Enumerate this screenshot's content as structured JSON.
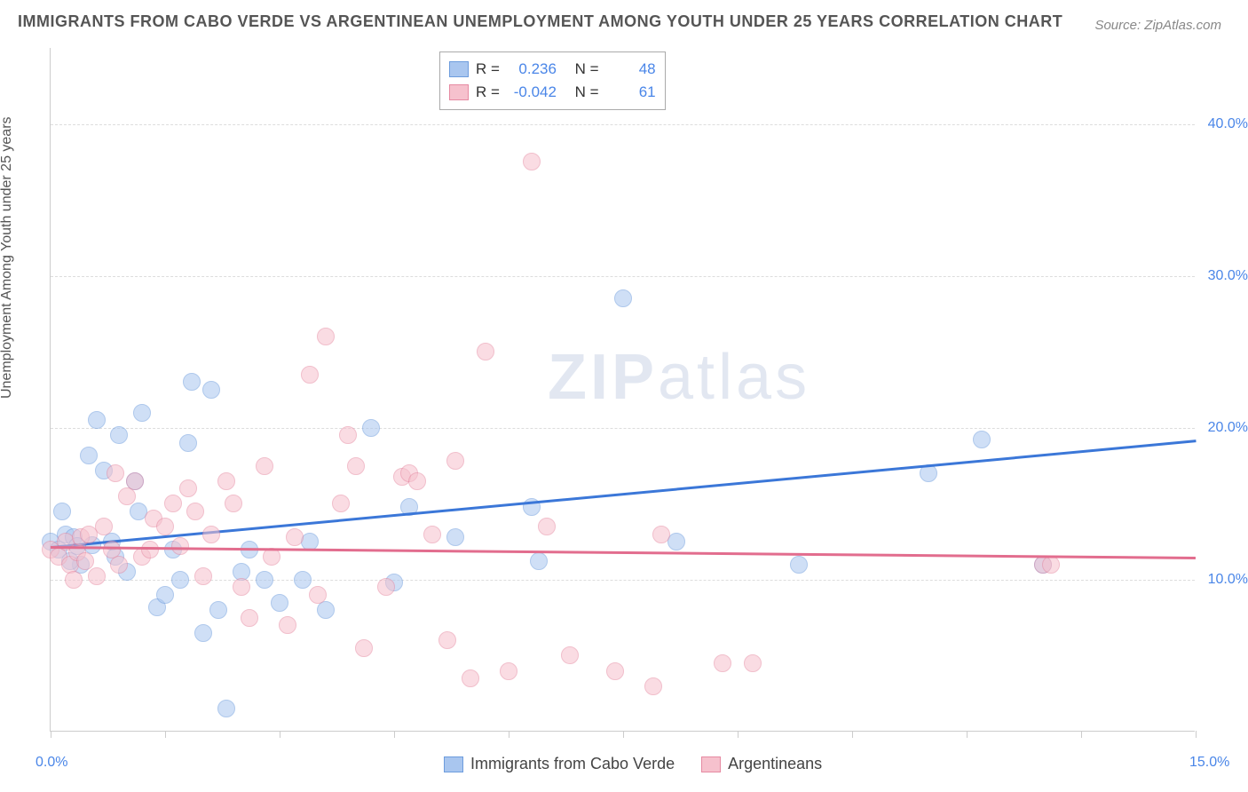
{
  "title": "IMMIGRANTS FROM CABO VERDE VS ARGENTINEAN UNEMPLOYMENT AMONG YOUTH UNDER 25 YEARS CORRELATION CHART",
  "source": "Source: ZipAtlas.com",
  "ylabel": "Unemployment Among Youth under 25 years",
  "watermark_a": "ZIP",
  "watermark_b": "atlas",
  "chart": {
    "type": "scatter",
    "background_color": "#ffffff",
    "grid_color": "#dddddd",
    "axis_color": "#cccccc",
    "xlim": [
      0,
      15
    ],
    "ylim": [
      0,
      45
    ],
    "ytick_values": [
      10,
      20,
      30,
      40
    ],
    "ytick_labels": [
      "10.0%",
      "20.0%",
      "30.0%",
      "40.0%"
    ],
    "xtick_positions": [
      0,
      1.5,
      3.0,
      4.5,
      6.0,
      7.5,
      9.0,
      10.5,
      12.0,
      13.5,
      15.0
    ],
    "xtick_label_left": "0.0%",
    "xtick_label_right": "15.0%",
    "ytick_label_color": "#4a86e8",
    "xtick_label_color": "#4a86e8",
    "marker_radius": 10,
    "marker_opacity": 0.55,
    "series": [
      {
        "name": "Immigrants from Cabo Verde",
        "color_fill": "#a9c6ef",
        "color_stroke": "#6d9cdd",
        "r_value": "0.236",
        "n_value": "48",
        "trend": {
          "x1": 0,
          "y1": 12.2,
          "x2": 15,
          "y2": 19.2,
          "color": "#3b77d8",
          "width": 3
        },
        "points": [
          {
            "x": 0.0,
            "y": 12.5
          },
          {
            "x": 0.1,
            "y": 12.0
          },
          {
            "x": 0.2,
            "y": 13.0
          },
          {
            "x": 0.15,
            "y": 14.5
          },
          {
            "x": 0.3,
            "y": 12.8
          },
          {
            "x": 0.4,
            "y": 11.0
          },
          {
            "x": 0.5,
            "y": 18.2
          },
          {
            "x": 0.55,
            "y": 12.3
          },
          {
            "x": 0.6,
            "y": 20.5
          },
          {
            "x": 0.7,
            "y": 17.2
          },
          {
            "x": 0.8,
            "y": 12.5
          },
          {
            "x": 0.85,
            "y": 11.5
          },
          {
            "x": 0.9,
            "y": 19.5
          },
          {
            "x": 1.0,
            "y": 10.5
          },
          {
            "x": 1.1,
            "y": 16.5
          },
          {
            "x": 1.15,
            "y": 14.5
          },
          {
            "x": 1.2,
            "y": 21.0
          },
          {
            "x": 1.4,
            "y": 8.2
          },
          {
            "x": 1.5,
            "y": 9.0
          },
          {
            "x": 1.6,
            "y": 12.0
          },
          {
            "x": 1.7,
            "y": 10.0
          },
          {
            "x": 1.8,
            "y": 19.0
          },
          {
            "x": 1.85,
            "y": 23.0
          },
          {
            "x": 2.0,
            "y": 6.5
          },
          {
            "x": 2.1,
            "y": 22.5
          },
          {
            "x": 2.2,
            "y": 8.0
          },
          {
            "x": 2.3,
            "y": 1.5
          },
          {
            "x": 2.5,
            "y": 10.5
          },
          {
            "x": 2.6,
            "y": 12.0
          },
          {
            "x": 2.8,
            "y": 10.0
          },
          {
            "x": 3.0,
            "y": 8.5
          },
          {
            "x": 3.3,
            "y": 10.0
          },
          {
            "x": 3.4,
            "y": 12.5
          },
          {
            "x": 3.6,
            "y": 8.0
          },
          {
            "x": 4.2,
            "y": 20.0
          },
          {
            "x": 4.5,
            "y": 9.8
          },
          {
            "x": 4.7,
            "y": 14.8
          },
          {
            "x": 5.3,
            "y": 12.8
          },
          {
            "x": 6.3,
            "y": 14.8
          },
          {
            "x": 6.4,
            "y": 11.2
          },
          {
            "x": 7.5,
            "y": 28.5
          },
          {
            "x": 8.2,
            "y": 12.5
          },
          {
            "x": 9.8,
            "y": 11.0
          },
          {
            "x": 11.5,
            "y": 17.0
          },
          {
            "x": 12.2,
            "y": 19.2
          },
          {
            "x": 13.0,
            "y": 11.0
          },
          {
            "x": 0.25,
            "y": 11.2
          },
          {
            "x": 0.35,
            "y": 12.2
          }
        ]
      },
      {
        "name": "Argentineans",
        "color_fill": "#f6c1cd",
        "color_stroke": "#e68aa2",
        "r_value": "-0.042",
        "n_value": "61",
        "trend": {
          "x1": 0,
          "y1": 12.2,
          "x2": 15,
          "y2": 11.5,
          "color": "#e26d8e",
          "width": 3
        },
        "points": [
          {
            "x": 0.0,
            "y": 12.0
          },
          {
            "x": 0.1,
            "y": 11.5
          },
          {
            "x": 0.2,
            "y": 12.5
          },
          {
            "x": 0.25,
            "y": 11.0
          },
          {
            "x": 0.3,
            "y": 10.0
          },
          {
            "x": 0.35,
            "y": 11.8
          },
          {
            "x": 0.4,
            "y": 12.8
          },
          {
            "x": 0.45,
            "y": 11.2
          },
          {
            "x": 0.5,
            "y": 13.0
          },
          {
            "x": 0.6,
            "y": 10.2
          },
          {
            "x": 0.7,
            "y": 13.5
          },
          {
            "x": 0.8,
            "y": 12.0
          },
          {
            "x": 0.85,
            "y": 17.0
          },
          {
            "x": 0.9,
            "y": 11.0
          },
          {
            "x": 1.0,
            "y": 15.5
          },
          {
            "x": 1.1,
            "y": 16.5
          },
          {
            "x": 1.2,
            "y": 11.5
          },
          {
            "x": 1.3,
            "y": 12.0
          },
          {
            "x": 1.35,
            "y": 14.0
          },
          {
            "x": 1.5,
            "y": 13.5
          },
          {
            "x": 1.6,
            "y": 15.0
          },
          {
            "x": 1.7,
            "y": 12.2
          },
          {
            "x": 1.8,
            "y": 16.0
          },
          {
            "x": 1.9,
            "y": 14.5
          },
          {
            "x": 2.0,
            "y": 10.2
          },
          {
            "x": 2.1,
            "y": 13.0
          },
          {
            "x": 2.3,
            "y": 16.5
          },
          {
            "x": 2.4,
            "y": 15.0
          },
          {
            "x": 2.5,
            "y": 9.5
          },
          {
            "x": 2.6,
            "y": 7.5
          },
          {
            "x": 2.8,
            "y": 17.5
          },
          {
            "x": 2.9,
            "y": 11.5
          },
          {
            "x": 3.1,
            "y": 7.0
          },
          {
            "x": 3.2,
            "y": 12.8
          },
          {
            "x": 3.4,
            "y": 23.5
          },
          {
            "x": 3.5,
            "y": 9.0
          },
          {
            "x": 3.6,
            "y": 26.0
          },
          {
            "x": 3.8,
            "y": 15.0
          },
          {
            "x": 3.9,
            "y": 19.5
          },
          {
            "x": 4.0,
            "y": 17.5
          },
          {
            "x": 4.1,
            "y": 5.5
          },
          {
            "x": 4.4,
            "y": 9.5
          },
          {
            "x": 4.6,
            "y": 16.8
          },
          {
            "x": 4.7,
            "y": 17.0
          },
          {
            "x": 4.8,
            "y": 16.5
          },
          {
            "x": 5.0,
            "y": 13.0
          },
          {
            "x": 5.2,
            "y": 6.0
          },
          {
            "x": 5.3,
            "y": 17.8
          },
          {
            "x": 5.5,
            "y": 3.5
          },
          {
            "x": 5.7,
            "y": 25.0
          },
          {
            "x": 6.0,
            "y": 4.0
          },
          {
            "x": 6.3,
            "y": 37.5
          },
          {
            "x": 6.5,
            "y": 13.5
          },
          {
            "x": 6.8,
            "y": 5.0
          },
          {
            "x": 7.4,
            "y": 4.0
          },
          {
            "x": 7.9,
            "y": 3.0
          },
          {
            "x": 8.0,
            "y": 13.0
          },
          {
            "x": 8.8,
            "y": 4.5
          },
          {
            "x": 9.2,
            "y": 4.5
          },
          {
            "x": 13.0,
            "y": 11.0
          },
          {
            "x": 13.1,
            "y": 11.0
          }
        ]
      }
    ]
  },
  "stats_legend": {
    "r_label": "R =",
    "n_label": "N ="
  },
  "bottom_legend": {
    "items": [
      "Immigrants from Cabo Verde",
      "Argentineans"
    ]
  }
}
